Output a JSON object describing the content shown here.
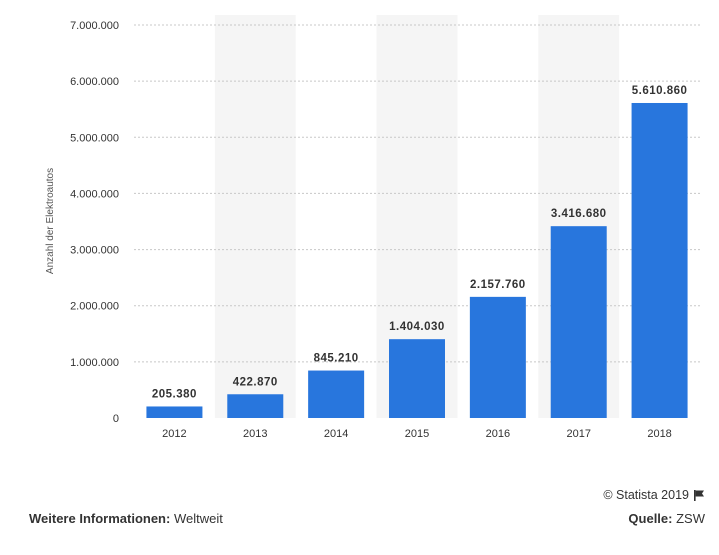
{
  "chart_data": {
    "type": "bar",
    "categories": [
      "2012",
      "2013",
      "2014",
      "2015",
      "2016",
      "2017",
      "2018"
    ],
    "values": [
      205380,
      422870,
      845210,
      1404030,
      2157760,
      3416680,
      5610860
    ],
    "value_labels": [
      "205.380",
      "422.870",
      "845.210",
      "1.404.030",
      "2.157.760",
      "3.416.680",
      "5.610.860"
    ],
    "ylabel": "Anzahl der Elektroautos",
    "ylim": [
      0,
      7000000
    ],
    "yticks": [
      0,
      1000000,
      2000000,
      3000000,
      4000000,
      5000000,
      6000000,
      7000000
    ],
    "ytick_labels": [
      "0",
      "1.000.000",
      "2.000.000",
      "3.000.000",
      "4.000.000",
      "5.000.000",
      "6.000.000",
      "7.000.000"
    ],
    "grid": true,
    "bar_color": "#2876dd",
    "band_color": "#f5f5f5"
  },
  "footer": {
    "info_label": "Weitere Informationen:",
    "info_value": "Weltweit",
    "credit": "© Statista 2019",
    "source_label": "Quelle:",
    "source_value": "ZSW"
  }
}
